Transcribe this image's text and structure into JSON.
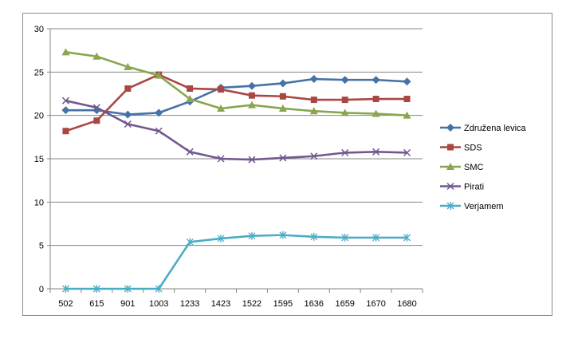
{
  "chart_data": {
    "type": "line",
    "title": "",
    "xlabel": "",
    "ylabel": "",
    "categories": [
      "502",
      "615",
      "901",
      "1003",
      "1233",
      "1423",
      "1522",
      "1595",
      "1636",
      "1659",
      "1670",
      "1680"
    ],
    "ylim": [
      0,
      30
    ],
    "yticks": [
      "0",
      "5",
      "10",
      "15",
      "20",
      "25",
      "30"
    ],
    "grid": "horizontal",
    "legend_position": "right",
    "series": [
      {
        "name": "Združena levica",
        "color": "#4572A7",
        "marker": "diamond",
        "values": [
          20.6,
          20.6,
          20.1,
          20.3,
          21.6,
          23.2,
          23.4,
          23.7,
          24.2,
          24.1,
          24.1,
          23.9
        ]
      },
      {
        "name": "SDS",
        "color": "#AA4643",
        "marker": "square",
        "values": [
          18.2,
          19.4,
          23.1,
          24.7,
          23.1,
          23.0,
          22.3,
          22.2,
          21.8,
          21.8,
          21.9,
          21.9
        ]
      },
      {
        "name": "SMC",
        "color": "#89A54E",
        "marker": "triangle",
        "values": [
          27.3,
          26.8,
          25.6,
          24.6,
          21.9,
          20.8,
          21.2,
          20.8,
          20.5,
          20.3,
          20.2,
          20.0
        ]
      },
      {
        "name": "Pirati",
        "color": "#71588F",
        "marker": "x",
        "values": [
          21.7,
          20.9,
          19.0,
          18.2,
          15.8,
          15.0,
          14.9,
          15.1,
          15.3,
          15.7,
          15.8,
          15.7
        ]
      },
      {
        "name": "Verjamem",
        "color": "#4BACC6",
        "marker": "star",
        "values": [
          0,
          0,
          0,
          0,
          5.4,
          5.8,
          6.1,
          6.2,
          6.0,
          5.9,
          5.9,
          5.9
        ]
      }
    ]
  }
}
